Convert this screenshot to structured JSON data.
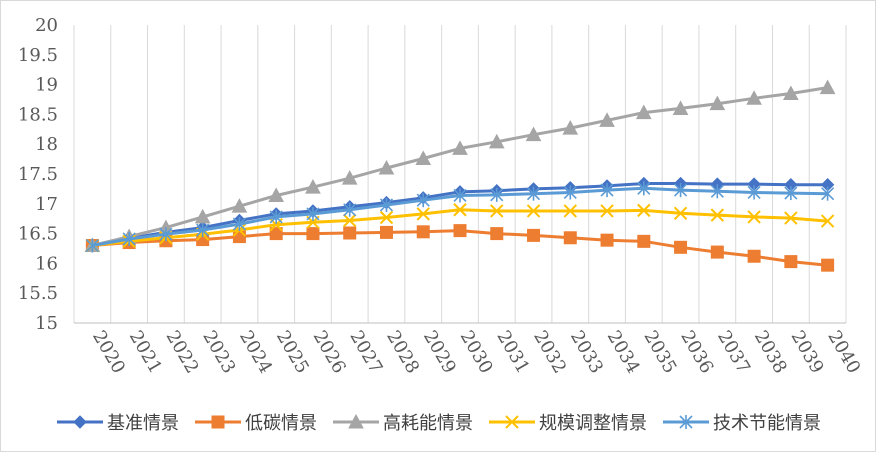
{
  "chart_data": {
    "type": "line",
    "title": "",
    "xlabel": "",
    "ylabel": "",
    "ylim": [
      15,
      20
    ],
    "y_ticks": [
      "15",
      "15.5",
      "16",
      "16.5",
      "17",
      "17.5",
      "18",
      "18.5",
      "19",
      "19.5",
      "20"
    ],
    "grid": "vertical",
    "legend_position": "bottom",
    "categories": [
      "2020",
      "2021",
      "2022",
      "2023",
      "2024",
      "2025",
      "2026",
      "2027",
      "2028",
      "2029",
      "2030",
      "2031",
      "2032",
      "2033",
      "2034",
      "2035",
      "2036",
      "2037",
      "2038",
      "2039",
      "2040"
    ],
    "series": [
      {
        "name": "基准情景",
        "color": "#4472C4",
        "marker": "diamond",
        "values": [
          16.3,
          16.42,
          16.52,
          16.6,
          16.72,
          16.83,
          16.88,
          16.95,
          17.02,
          17.1,
          17.2,
          17.22,
          17.25,
          17.27,
          17.3,
          17.34,
          17.34,
          17.33,
          17.33,
          17.32,
          17.32
        ]
      },
      {
        "name": "低碳情景",
        "color": "#ED7D31",
        "marker": "square",
        "values": [
          16.3,
          16.35,
          16.38,
          16.4,
          16.45,
          16.5,
          16.5,
          16.51,
          16.52,
          16.53,
          16.55,
          16.5,
          16.47,
          16.43,
          16.39,
          16.37,
          16.27,
          16.19,
          16.12,
          16.03,
          15.97
        ]
      },
      {
        "name": "高耗能情景",
        "color": "#A5A5A5",
        "marker": "triangle",
        "values": [
          16.3,
          16.45,
          16.6,
          16.78,
          16.96,
          17.14,
          17.28,
          17.43,
          17.6,
          17.76,
          17.93,
          18.04,
          18.16,
          18.27,
          18.4,
          18.53,
          18.6,
          18.68,
          18.77,
          18.85,
          18.95
        ]
      },
      {
        "name": "规模调整情景",
        "color": "#FFC000",
        "marker": "x",
        "values": [
          16.3,
          16.37,
          16.43,
          16.49,
          16.56,
          16.65,
          16.69,
          16.72,
          16.77,
          16.83,
          16.9,
          16.88,
          16.88,
          16.88,
          16.88,
          16.89,
          16.84,
          16.81,
          16.78,
          16.76,
          16.71
        ]
      },
      {
        "name": "技术节能情景",
        "color": "#5B9BD5",
        "marker": "asterisk",
        "values": [
          16.3,
          16.41,
          16.49,
          16.56,
          16.66,
          16.78,
          16.83,
          16.9,
          16.98,
          17.06,
          17.14,
          17.15,
          17.17,
          17.19,
          17.23,
          17.26,
          17.23,
          17.21,
          17.19,
          17.18,
          17.17
        ]
      }
    ]
  }
}
